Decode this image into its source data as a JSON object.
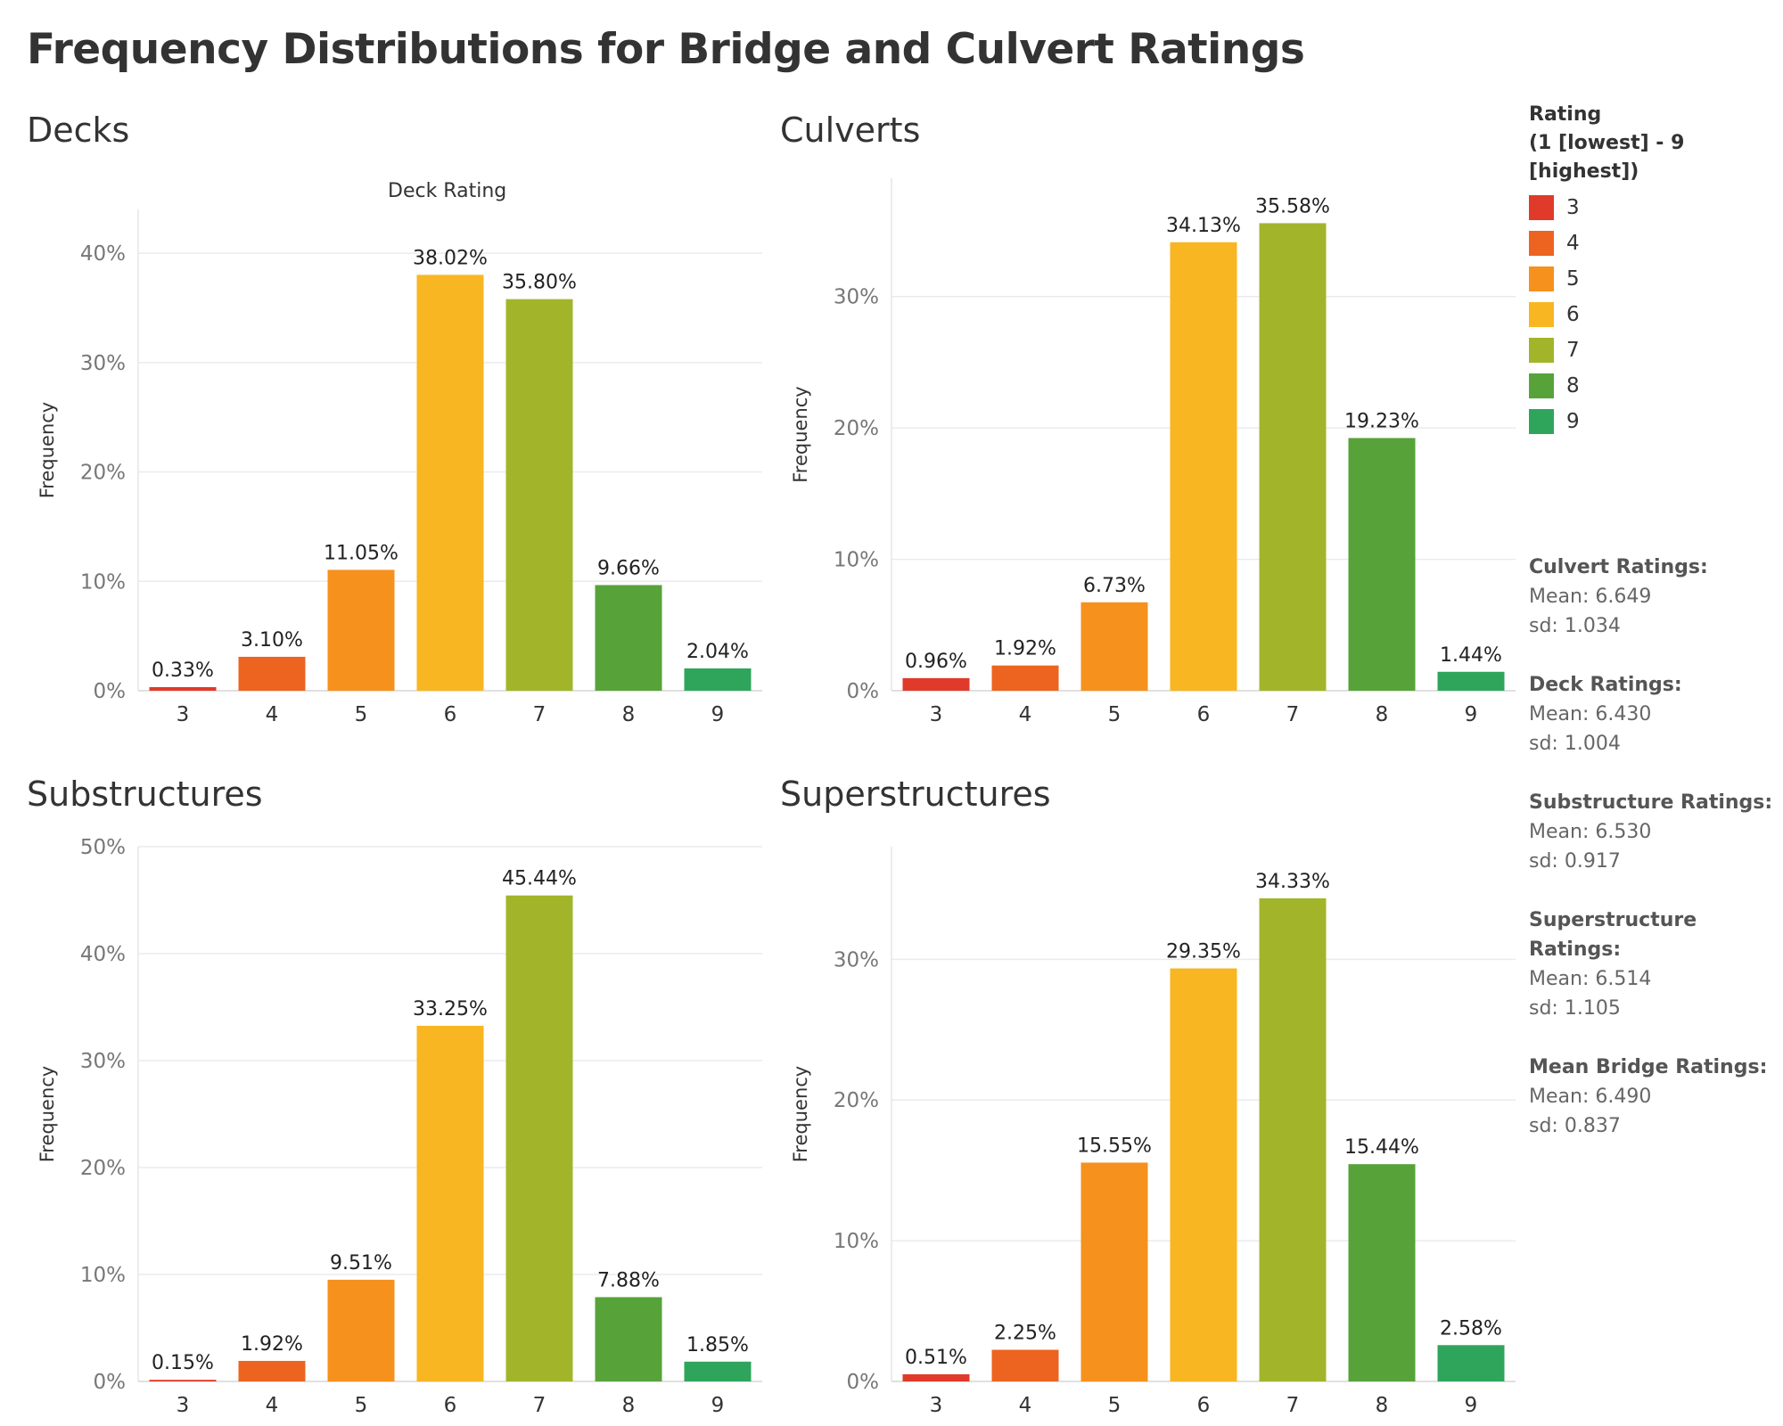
{
  "page_title": "Frequency Distributions for Bridge and Culvert Ratings",
  "colors": {
    "3": "#e03a2a",
    "4": "#ec6420",
    "5": "#f6911e",
    "6": "#f8b622",
    "7": "#a2b52a",
    "8": "#57a33a",
    "9": "#2fa55c"
  },
  "legend": {
    "title": "Rating\n(1 [lowest] - 9 [highest])",
    "items": [
      "3",
      "4",
      "5",
      "6",
      "7",
      "8",
      "9"
    ]
  },
  "stats": [
    {
      "title": "Culvert Ratings:",
      "mean": "Mean: 6.649",
      "sd": "sd: 1.034"
    },
    {
      "title": "Deck Ratings:",
      "mean": "Mean: 6.430",
      "sd": "sd: 1.004"
    },
    {
      "title": "Substructure Ratings:",
      "mean": "Mean: 6.530",
      "sd": "sd: 0.917"
    },
    {
      "title": "Superstructure Ratings:",
      "mean": "Mean: 6.514",
      "sd": "sd: 1.105"
    },
    {
      "title": "Mean Bridge Ratings:",
      "mean": "Mean: 6.490",
      "sd": "sd: 0.837"
    }
  ],
  "chart_data": [
    {
      "id": "decks",
      "type": "bar",
      "title": "Decks",
      "header": "Deck Rating",
      "ylabel": "Frequency",
      "categories": [
        "3",
        "4",
        "5",
        "6",
        "7",
        "8",
        "9"
      ],
      "values": [
        0.33,
        3.1,
        11.05,
        38.02,
        35.8,
        9.66,
        2.04
      ],
      "labels": [
        "0.33%",
        "3.10%",
        "11.05%",
        "38.02%",
        "35.80%",
        "9.66%",
        "2.04%"
      ],
      "ylim": [
        0,
        44
      ],
      "yticks": [
        0,
        10,
        20,
        30,
        40
      ],
      "ytick_labels": [
        "0%",
        "10%",
        "20%",
        "30%",
        "40%"
      ],
      "grid": true
    },
    {
      "id": "culverts",
      "type": "bar",
      "title": "Culverts",
      "ylabel": "Frequency",
      "categories": [
        "3",
        "4",
        "5",
        "6",
        "7",
        "8",
        "9"
      ],
      "values": [
        0.96,
        1.92,
        6.73,
        34.13,
        35.58,
        19.23,
        1.44
      ],
      "labels": [
        "0.96%",
        "1.92%",
        "6.73%",
        "34.13%",
        "35.58%",
        "19.23%",
        "1.44%"
      ],
      "ylim": [
        0,
        39
      ],
      "yticks": [
        0,
        10,
        20,
        30
      ],
      "ytick_labels": [
        "0%",
        "10%",
        "20%",
        "30%"
      ],
      "grid": true
    },
    {
      "id": "substructures",
      "type": "bar",
      "title": "Substructures",
      "ylabel": "Frequency",
      "categories": [
        "3",
        "4",
        "5",
        "6",
        "7",
        "8",
        "9"
      ],
      "values": [
        0.15,
        1.92,
        9.51,
        33.25,
        45.44,
        7.88,
        1.85
      ],
      "labels": [
        "0.15%",
        "1.92%",
        "9.51%",
        "33.25%",
        "45.44%",
        "7.88%",
        "1.85%"
      ],
      "ylim": [
        0,
        50
      ],
      "yticks": [
        0,
        10,
        20,
        30,
        40,
        50
      ],
      "ytick_labels": [
        "0%",
        "10%",
        "20%",
        "30%",
        "40%",
        "50%"
      ],
      "grid": true
    },
    {
      "id": "superstructures",
      "type": "bar",
      "title": "Superstructures",
      "ylabel": "Frequency",
      "categories": [
        "3",
        "4",
        "5",
        "6",
        "7",
        "8",
        "9"
      ],
      "values": [
        0.51,
        2.25,
        15.55,
        29.35,
        34.33,
        15.44,
        2.58
      ],
      "labels": [
        "0.51%",
        "2.25%",
        "15.55%",
        "29.35%",
        "34.33%",
        "15.44%",
        "2.58%"
      ],
      "ylim": [
        0,
        38
      ],
      "yticks": [
        0,
        10,
        20,
        30
      ],
      "ytick_labels": [
        "0%",
        "10%",
        "20%",
        "30%"
      ],
      "grid": true
    }
  ]
}
